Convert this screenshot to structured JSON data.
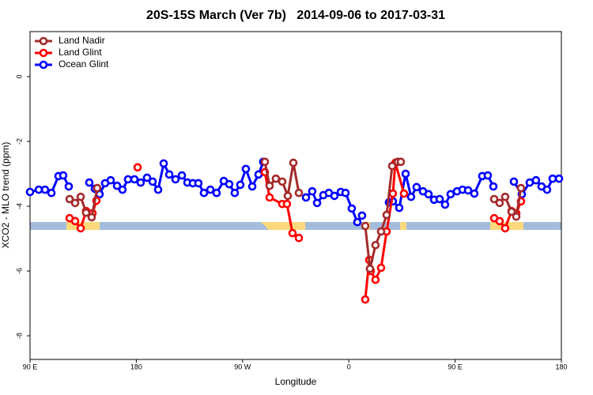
{
  "chart_data": {
    "type": "line",
    "title": "20S-15S March (Ver 7b)   2014-09-06 to 2017-03-31",
    "xlabel": "Longitude",
    "ylabel": "XCO2 - MLO trend (ppm)",
    "xlim": [
      90,
      540
    ],
    "xticks": [
      {
        "value": 90,
        "label": "90 E"
      },
      180,
      {
        "value": 270,
        "label": "90 W"
      },
      {
        "value": 360,
        "label": "0"
      },
      {
        "value": 450,
        "label": "90 E"
      },
      {
        "value": 540,
        "label": "180"
      }
    ],
    "ylim": [
      -8.73,
      1.39
    ],
    "yticks": [
      0,
      -2,
      -4,
      -6,
      -8
    ],
    "legend": "top-left",
    "series": [
      {
        "name": "Land Nadir",
        "color": "#a52a2a",
        "x": [
          123.5,
          128.2,
          132.9,
          137.5,
          142.2,
          146.9,
          null,
          288.9,
          292.9,
          298.2,
          303.6,
          308.3,
          313.0,
          317.7,
          null,
          373.9,
          377.9,
          382.6,
          387.3,
          392.0,
          396.7,
          401.4,
          404.0,
          null,
          483.1,
          487.7,
          492.4,
          497.8,
          501.8,
          505.8
        ],
        "values": [
          -3.78,
          -3.9,
          -3.71,
          -4.2,
          -4.34,
          -3.44,
          null,
          -2.63,
          -3.37,
          -3.15,
          -3.24,
          -3.68,
          -2.66,
          -3.59,
          null,
          -4.61,
          -5.93,
          -5.2,
          -4.78,
          -4.27,
          -2.76,
          -2.63,
          -2.63,
          null,
          -3.78,
          -3.9,
          -3.71,
          -4.17,
          -4.32,
          -3.44
        ]
      },
      {
        "name": "Land Glint",
        "color": "#ff0000",
        "x": [
          123.5,
          128.2,
          132.9,
          137.5,
          142.9,
          146.2,
          null,
          181.1,
          null,
          288.9,
          292.9,
          303.6,
          307.6,
          312.3,
          317.7,
          null,
          373.9,
          377.3,
          378.6,
          382.6,
          387.3,
          392.0,
          397.3,
          399.4,
          406.7,
          null,
          483.1,
          487.7,
          492.4,
          497.8,
          501.8,
          505.8
        ],
        "values": [
          -4.37,
          -4.46,
          -4.68,
          -4.15,
          -4.22,
          -3.83,
          null,
          -2.8,
          null,
          -2.95,
          -3.73,
          -3.93,
          -3.93,
          -4.83,
          -4.98,
          null,
          -6.88,
          -5.66,
          -6.0,
          -6.27,
          -5.9,
          -4.78,
          -3.61,
          -2.66,
          -3.61,
          null,
          -4.37,
          -4.46,
          -4.68,
          -4.15,
          -4.22,
          -3.85
        ]
      },
      {
        "name": "Ocean Glint",
        "color": "#0000ff",
        "x": [
          90.0,
          97.4,
          102.7,
          108.1,
          114.1,
          118.1,
          122.8,
          null,
          140.2,
          144.9,
          148.9,
          153.6,
          158.3,
          163.7,
          168.3,
          173.0,
          178.4,
          183.7,
          189.1,
          193.8,
          198.5,
          203.2,
          207.9,
          213.2,
          218.6,
          223.3,
          227.9,
          232.6,
          237.3,
          242.7,
          248.0,
          254.1,
          258.7,
          263.4,
          268.1,
          272.8,
          278.2,
          283.5,
          287.5,
          null,
          323.7,
          329.0,
          333.1,
          338.4,
          343.1,
          347.8,
          353.2,
          357.2,
          362.5,
          367.2,
          371.2,
          null,
          394.0,
          397.3,
          402.7,
          408.1,
          412.7,
          417.4,
          422.8,
          427.5,
          432.2,
          436.9,
          441.5,
          446.2,
          451.6,
          456.3,
          461.0,
          466.3,
          473.0,
          477.7,
          482.4,
          null,
          499.8,
          506.5,
          513.2,
          518.5,
          523.2,
          527.9,
          532.6,
          538.0
        ],
        "values": [
          -3.56,
          -3.49,
          -3.49,
          -3.59,
          -3.07,
          -3.05,
          -3.39,
          null,
          -3.27,
          -3.46,
          -3.63,
          -3.29,
          -3.2,
          -3.37,
          -3.49,
          -3.17,
          -3.17,
          -3.27,
          -3.12,
          -3.24,
          -3.49,
          -2.68,
          -3.02,
          -3.17,
          -3.05,
          -3.27,
          -3.29,
          -3.29,
          -3.59,
          -3.49,
          -3.59,
          -3.22,
          -3.32,
          -3.59,
          -3.34,
          -2.85,
          -3.39,
          -3.02,
          -2.63,
          null,
          -3.73,
          -3.54,
          -3.9,
          -3.66,
          -3.59,
          -3.68,
          -3.56,
          -3.59,
          -4.07,
          -4.49,
          -4.29,
          null,
          -3.88,
          -3.85,
          -4.05,
          -3.0,
          -3.71,
          -3.41,
          -3.54,
          -3.63,
          -3.8,
          -3.78,
          -3.95,
          -3.63,
          -3.54,
          -3.49,
          -3.51,
          -3.61,
          -3.07,
          -3.05,
          -3.39,
          null,
          -3.24,
          -3.63,
          -3.27,
          -3.2,
          -3.39,
          -3.49,
          -3.15,
          -3.15
        ]
      }
    ]
  }
}
